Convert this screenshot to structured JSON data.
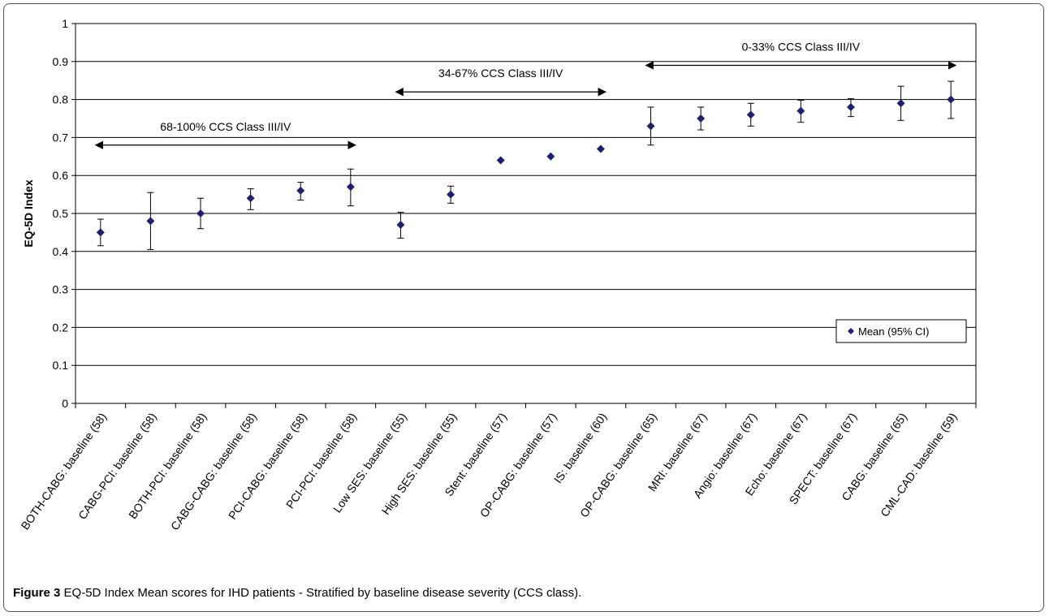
{
  "caption": {
    "label": "Figure 3",
    "text": "EQ-5D Index Mean scores for IHD patients - Stratified by baseline disease severity (CCS class)."
  },
  "chart_data": {
    "type": "scatter",
    "ylabel": "EQ-5D Index",
    "ylim": [
      0,
      1
    ],
    "yticks": [
      "0",
      "0.1",
      "0.2",
      "0.3",
      "0.4",
      "0.5",
      "0.6",
      "0.7",
      "0.8",
      "0.9",
      "1"
    ],
    "grid": true,
    "legend": {
      "label": "Mean (95% CI)",
      "position": "right"
    },
    "categories": [
      "BOTH-CABG: baseline (58)",
      "CABG-PCI: baseline (58)",
      "BOTH-PCI: baseline (58)",
      "CABG-CABG: baseline (58)",
      "PCI-CABG: baseline (58)",
      "PCI-PCI: baseline (58)",
      "Low SES: baseline (55)",
      "High SES: baseline (55)",
      "Stent: baseline (57)",
      "OP-CABG: baseline (57)",
      "IS: baseline (60)",
      "OP-CABG: baseline (65)",
      "MRI: baseline (67)",
      "Angio: baseline (67)",
      "Echo: baseline (67)",
      "SPECT: baseline (67)",
      "CABG: baseline (65)",
      "CML-CAD: baseline (59)"
    ],
    "series": [
      {
        "name": "Mean (95% CI)",
        "values": [
          0.45,
          0.48,
          0.5,
          0.54,
          0.56,
          0.57,
          0.47,
          0.55,
          0.64,
          0.65,
          0.67,
          0.73,
          0.75,
          0.76,
          0.77,
          0.78,
          0.79,
          0.8
        ],
        "ci_low": [
          0.415,
          0.405,
          0.46,
          0.51,
          0.535,
          0.52,
          0.435,
          0.527,
          null,
          null,
          null,
          0.68,
          0.72,
          0.73,
          0.74,
          0.755,
          0.745,
          0.75
        ],
        "ci_high": [
          0.485,
          0.555,
          0.54,
          0.565,
          0.582,
          0.617,
          0.503,
          0.572,
          null,
          null,
          null,
          0.78,
          0.78,
          0.79,
          0.798,
          0.802,
          0.835,
          0.848
        ]
      }
    ],
    "annotations": [
      {
        "text": "68-100% CCS Class III/IV",
        "from": 0,
        "to": 5,
        "y": 0.68
      },
      {
        "text": "34-67% CCS Class III/IV",
        "from": 6,
        "to": 10,
        "y": 0.82
      },
      {
        "text": "0-33% CCS Class III/IV",
        "from": 11,
        "to": 17,
        "y": 0.89
      }
    ],
    "colors": {
      "marker": "#1f1f6e",
      "grid": "#000000",
      "error": "#000000"
    }
  }
}
